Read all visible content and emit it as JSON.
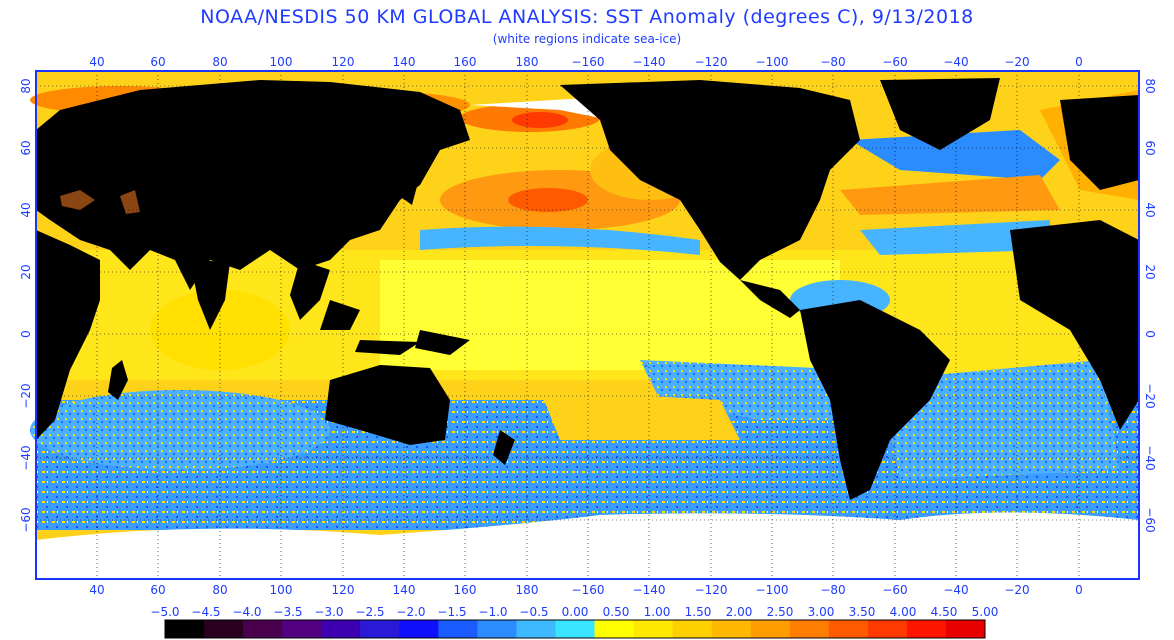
{
  "title": "NOAA/NESDIS 50 KM GLOBAL ANALYSIS: SST Anomaly (degrees C), 9/13/2018",
  "subtitle": "(white regions indicate sea-ice)",
  "lon_ticks": [
    "40",
    "60",
    "80",
    "100",
    "120",
    "140",
    "160",
    "180",
    "−160",
    "−140",
    "−120",
    "−100",
    "−80",
    "−60",
    "−40",
    "−20",
    "0"
  ],
  "lat_ticks": [
    "80",
    "60",
    "40",
    "20",
    "0",
    "−20",
    "−40",
    "−60"
  ],
  "colorbar": {
    "labels": [
      "−5.0",
      "−4.5",
      "−4.0",
      "−3.5",
      "−3.0",
      "−2.5",
      "−2.0",
      "−1.5",
      "−1.0",
      "−0.5",
      "0.00",
      "0.50",
      "1.00",
      "1.50",
      "2.00",
      "2.50",
      "3.00",
      "3.50",
      "4.00",
      "4.50",
      "5.00"
    ],
    "colors": [
      "#000000",
      "#2a0020",
      "#4a004f",
      "#520080",
      "#3c00b0",
      "#2a1ad8",
      "#1010ff",
      "#1a5cff",
      "#2a8cff",
      "#3eb8ff",
      "#38e4ff",
      "#ffff00",
      "#ffe800",
      "#ffd000",
      "#ffb800",
      "#ff9c00",
      "#ff7e00",
      "#ff5a00",
      "#ff3a00",
      "#ff1400",
      "#e80000"
    ]
  },
  "palette": {
    "land": "#000000",
    "ice": "#ffffff",
    "ocean_warm": "#ffd21a",
    "ocean_neutral": "#ffff33",
    "ocean_cool": "#3aa0ff",
    "ocean_hot": "#ff6a00",
    "grid": "#000000",
    "frame": "#1a33ff"
  }
}
